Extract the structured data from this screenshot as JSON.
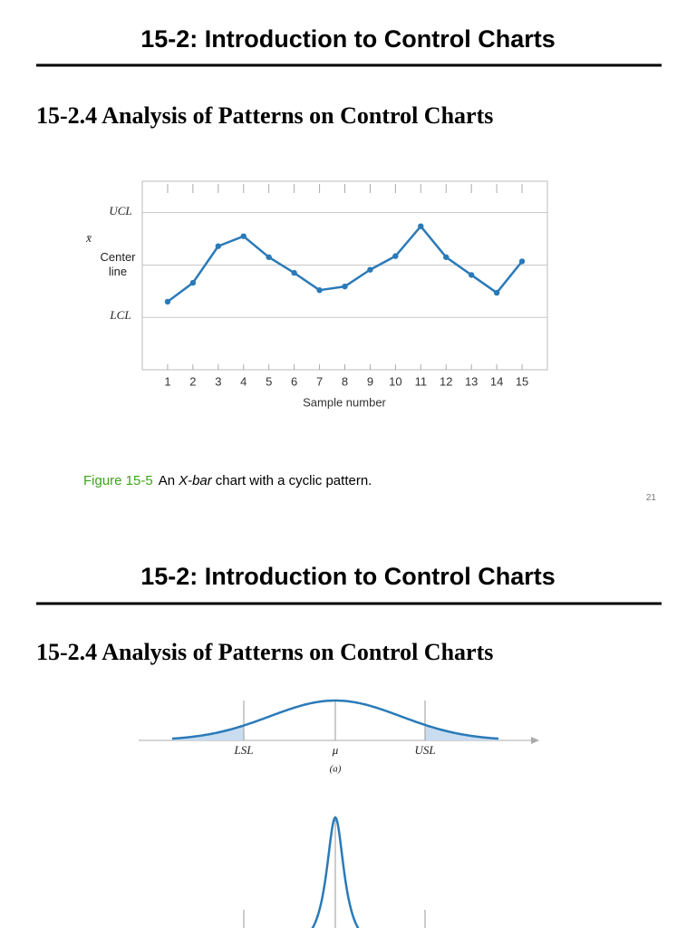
{
  "slides": [
    {
      "title": "15-2: Introduction to Control Charts",
      "subtitle": "15-2.4 Analysis of Patterns on Control Charts",
      "caption": {
        "label": "Figure 15-5",
        "parts": [
          "An",
          "X-bar",
          "chart with a cyclic pattern."
        ]
      },
      "page_number": "21"
    },
    {
      "title": "15-2: Introduction to Control Charts",
      "subtitle": "15-2.4 Analysis of Patterns on Control Charts",
      "figure": {
        "labels": [
          "LSL",
          "μ",
          "USL"
        ],
        "panel": "(a)"
      }
    }
  ],
  "chart_data": {
    "type": "line",
    "x_label": "Sample number",
    "y_label": "x̄",
    "x": [
      1,
      2,
      3,
      4,
      5,
      6,
      7,
      8,
      9,
      10,
      11,
      12,
      13,
      14,
      15
    ],
    "series": [
      {
        "color": "#2a7ab8",
        "values": [
          -0.7,
          -0.34,
          0.36,
          0.55,
          0.15,
          -0.15,
          -0.48,
          -0.41,
          -0.09,
          0.17,
          0.74,
          0.15,
          -0.19,
          -0.53,
          0.07
        ]
      }
    ],
    "xlim": [
      0,
      16
    ],
    "xticks": [
      1,
      2,
      3,
      4,
      5,
      6,
      7,
      8,
      9,
      10,
      11,
      12,
      13,
      14,
      15
    ],
    "ylim": [
      -2,
      1.6
    ],
    "yticks": [
      {
        "value": 1,
        "label": "UCL"
      },
      {
        "value": 0,
        "label": "Center line"
      },
      {
        "value": -1,
        "label": "LCL"
      }
    ],
    "grid": true
  }
}
